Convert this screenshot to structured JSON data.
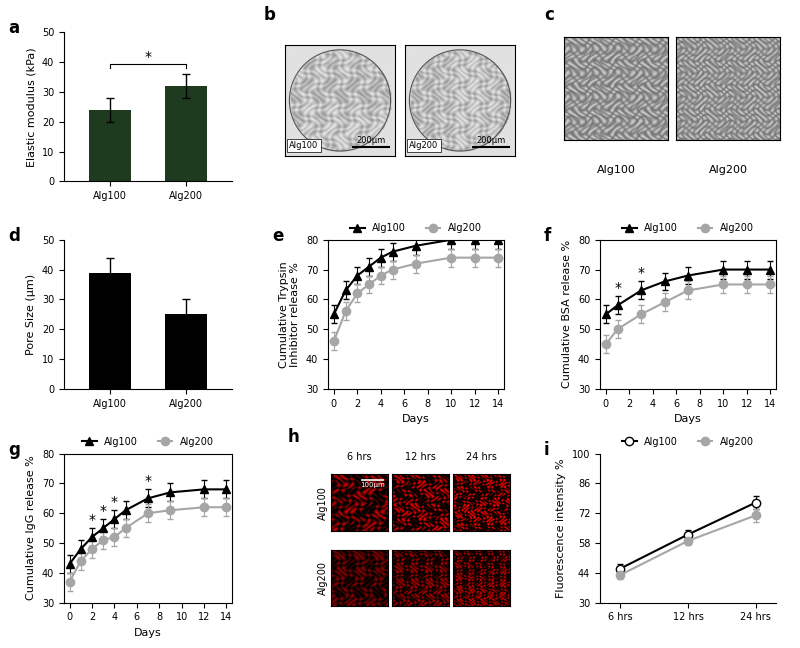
{
  "chart_data": [
    {
      "label": "a",
      "type": "bar",
      "ylabel": "Elastic modulus (kPa)",
      "categories": [
        "Alg100",
        "Alg200"
      ],
      "values": [
        24,
        32
      ],
      "errors": [
        4,
        4
      ],
      "color": "#1f3b1f",
      "ylim": [
        0,
        50
      ],
      "yticks": [
        0,
        10,
        20,
        30,
        40,
        50
      ],
      "annotations": [
        {
          "text": "*",
          "between": [
            "Alg100",
            "Alg200"
          ]
        }
      ]
    },
    {
      "label": "b",
      "type": "image",
      "images": [
        {
          "caption": "Alg100",
          "scale_bar": "200µm"
        },
        {
          "caption": "Alg200",
          "scale_bar": "200µm"
        }
      ]
    },
    {
      "label": "c",
      "type": "image_pair",
      "images": [
        {
          "caption": "Alg100"
        },
        {
          "caption": "Alg200"
        }
      ]
    },
    {
      "label": "d",
      "type": "bar",
      "ylabel": "Pore Size (µm)",
      "categories": [
        "Alg100",
        "Alg200"
      ],
      "values": [
        39,
        25
      ],
      "errors": [
        5,
        5
      ],
      "color": "#000000",
      "ylim": [
        0,
        50
      ],
      "yticks": [
        0,
        10,
        20,
        30,
        40,
        50
      ]
    },
    {
      "label": "e",
      "type": "line",
      "xlabel": "Days",
      "ylabel": "Cumulative Trypsin\nInhibitor release %",
      "x": [
        0,
        1,
        2,
        3,
        4,
        5,
        7,
        10,
        12,
        14
      ],
      "series": [
        {
          "name": "Alg100",
          "color": "#000000",
          "marker": "triangle",
          "values": [
            55,
            63,
            68,
            71,
            74,
            76,
            78,
            80,
            80,
            80
          ],
          "errors": [
            3,
            3,
            3,
            3,
            3,
            3,
            3,
            3,
            3,
            3
          ]
        },
        {
          "name": "Alg200",
          "color": "#a6a6a6",
          "marker": "circle",
          "values": [
            46,
            56,
            62,
            65,
            68,
            70,
            72,
            74,
            74,
            74
          ],
          "errors": [
            3,
            3,
            3,
            3,
            3,
            3,
            3,
            3,
            3,
            3
          ]
        }
      ],
      "xlim": [
        -0.5,
        14.5
      ],
      "xticks": [
        0,
        2,
        4,
        6,
        8,
        10,
        12,
        14
      ],
      "ylim": [
        30,
        80
      ],
      "yticks": [
        30,
        40,
        50,
        60,
        70,
        80
      ],
      "legend": "lower center"
    },
    {
      "label": "f",
      "type": "line",
      "xlabel": "Days",
      "ylabel": "Cumulative BSA release %",
      "x": [
        0,
        1,
        3,
        5,
        7,
        10,
        12,
        14
      ],
      "series": [
        {
          "name": "Alg100",
          "color": "#000000",
          "marker": "triangle",
          "values": [
            55,
            58,
            63,
            66,
            68,
            70,
            70,
            70
          ],
          "errors": [
            3,
            3,
            3,
            3,
            3,
            3,
            3,
            3
          ]
        },
        {
          "name": "Alg200",
          "color": "#a6a6a6",
          "marker": "circle",
          "values": [
            45,
            50,
            55,
            59,
            63,
            65,
            65,
            65
          ],
          "errors": [
            3,
            3,
            3,
            3,
            3,
            3,
            3,
            3
          ]
        }
      ],
      "xlim": [
        -0.5,
        14.5
      ],
      "xticks": [
        0,
        2,
        4,
        6,
        8,
        10,
        12,
        14
      ],
      "ylim": [
        30,
        80
      ],
      "yticks": [
        30,
        40,
        50,
        60,
        70,
        80
      ],
      "legend": "lower center",
      "annotations": [
        {
          "text": "*",
          "x": 1
        },
        {
          "text": "*",
          "x": 3
        }
      ]
    },
    {
      "label": "g",
      "type": "line",
      "xlabel": "Days",
      "ylabel": "Cumulative IgG release %",
      "x": [
        0,
        1,
        2,
        3,
        4,
        5,
        7,
        9,
        12,
        14
      ],
      "series": [
        {
          "name": "Alg100",
          "color": "#000000",
          "marker": "triangle",
          "values": [
            43,
            48,
            52,
            55,
            58,
            61,
            65,
            67,
            68,
            68
          ],
          "errors": [
            3,
            3,
            3,
            3,
            3,
            3,
            3,
            3,
            3,
            3
          ]
        },
        {
          "name": "Alg200",
          "color": "#a6a6a6",
          "marker": "circle",
          "values": [
            37,
            44,
            48,
            51,
            52,
            55,
            60,
            61,
            62,
            62
          ],
          "errors": [
            3,
            3,
            3,
            3,
            3,
            3,
            3,
            3,
            3,
            3
          ]
        }
      ],
      "xlim": [
        -0.5,
        14.5
      ],
      "xticks": [
        0,
        2,
        4,
        6,
        8,
        10,
        12,
        14
      ],
      "ylim": [
        30,
        80
      ],
      "yticks": [
        30,
        40,
        50,
        60,
        70,
        80
      ],
      "legend": "lower center",
      "annotations": [
        {
          "text": "*",
          "x": 2
        },
        {
          "text": "*",
          "x": 3
        },
        {
          "text": "*",
          "x": 4
        },
        {
          "text": "*",
          "x": 7
        }
      ]
    },
    {
      "label": "h",
      "type": "image_grid",
      "columns": [
        "6 hrs",
        "12 hrs",
        "24 hrs"
      ],
      "rows": [
        "Alg100",
        "Alg200"
      ],
      "scale_bar": "100µm"
    },
    {
      "label": "i",
      "type": "line",
      "ylabel": "Fluorescence intensity %",
      "categories": [
        "6 hrs",
        "12 hrs",
        "24 hrs"
      ],
      "series": [
        {
          "name": "Alg100",
          "color": "#000000",
          "marker": "open circle",
          "values": [
            46,
            62,
            77
          ],
          "errors": [
            2,
            2,
            3
          ]
        },
        {
          "name": "Alg200",
          "color": "#a6a6a6",
          "marker": "circle",
          "values": [
            43,
            59,
            71
          ],
          "errors": [
            2,
            2,
            3
          ]
        }
      ],
      "ylim": [
        30,
        100
      ],
      "yticks": [
        30,
        44,
        58,
        72,
        86,
        100
      ],
      "legend": "lower center"
    }
  ]
}
